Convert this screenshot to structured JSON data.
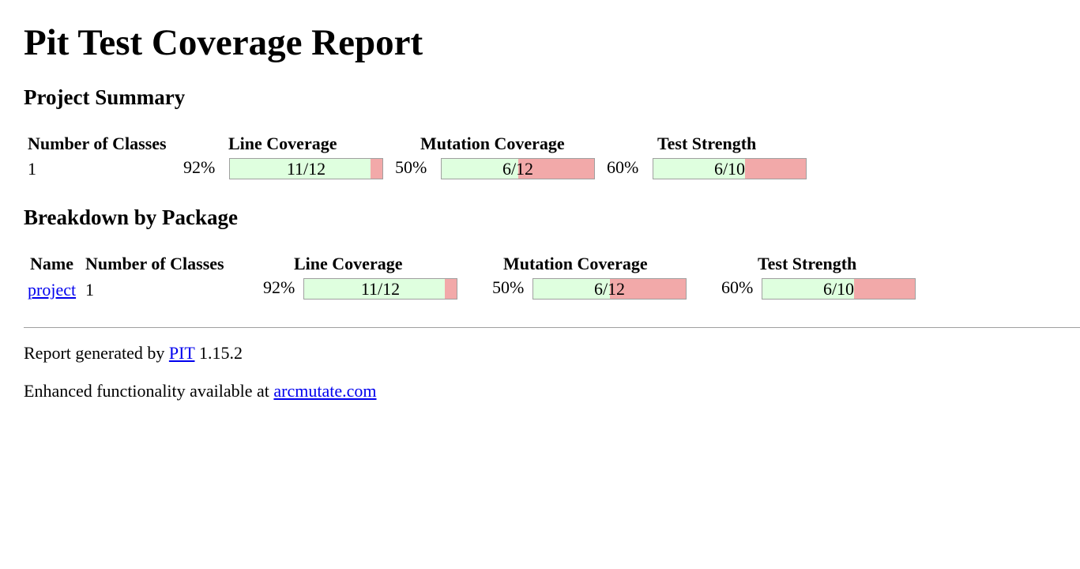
{
  "title": "Pit Test Coverage Report",
  "project_summary": {
    "heading": "Project Summary",
    "headers": {
      "classes": "Number of Classes",
      "line": "Line Coverage",
      "mutation": "Mutation Coverage",
      "strength": "Test Strength"
    },
    "row": {
      "classes": "1",
      "line_pct": "92%",
      "line_frac": "11/12",
      "line_fill": 0.92,
      "mutation_pct": "50%",
      "mutation_frac": "6/12",
      "mutation_fill": 0.5,
      "strength_pct": "60%",
      "strength_frac": "6/10",
      "strength_fill": 0.6
    }
  },
  "breakdown": {
    "heading": "Breakdown by Package",
    "headers": {
      "name": "Name",
      "classes": "Number of Classes",
      "line": "Line Coverage",
      "mutation": "Mutation Coverage",
      "strength": "Test Strength"
    },
    "rows": [
      {
        "name": "project",
        "classes": "1",
        "line_pct": "92%",
        "line_frac": "11/12",
        "line_fill": 0.92,
        "mutation_pct": "50%",
        "mutation_frac": "6/12",
        "mutation_fill": 0.5,
        "strength_pct": "60%",
        "strength_frac": "6/10",
        "strength_fill": 0.6
      }
    ]
  },
  "footer": {
    "generated_prefix": "Report generated by",
    "pit_link": "PIT",
    "version": "1.15.2",
    "enhanced_prefix": "Enhanced functionality available at",
    "arcmutate_link": "arcmutate.com"
  },
  "colors": {
    "covered": "#dfffdf",
    "uncovered": "#f2a9a9",
    "link": "#0000ee"
  }
}
